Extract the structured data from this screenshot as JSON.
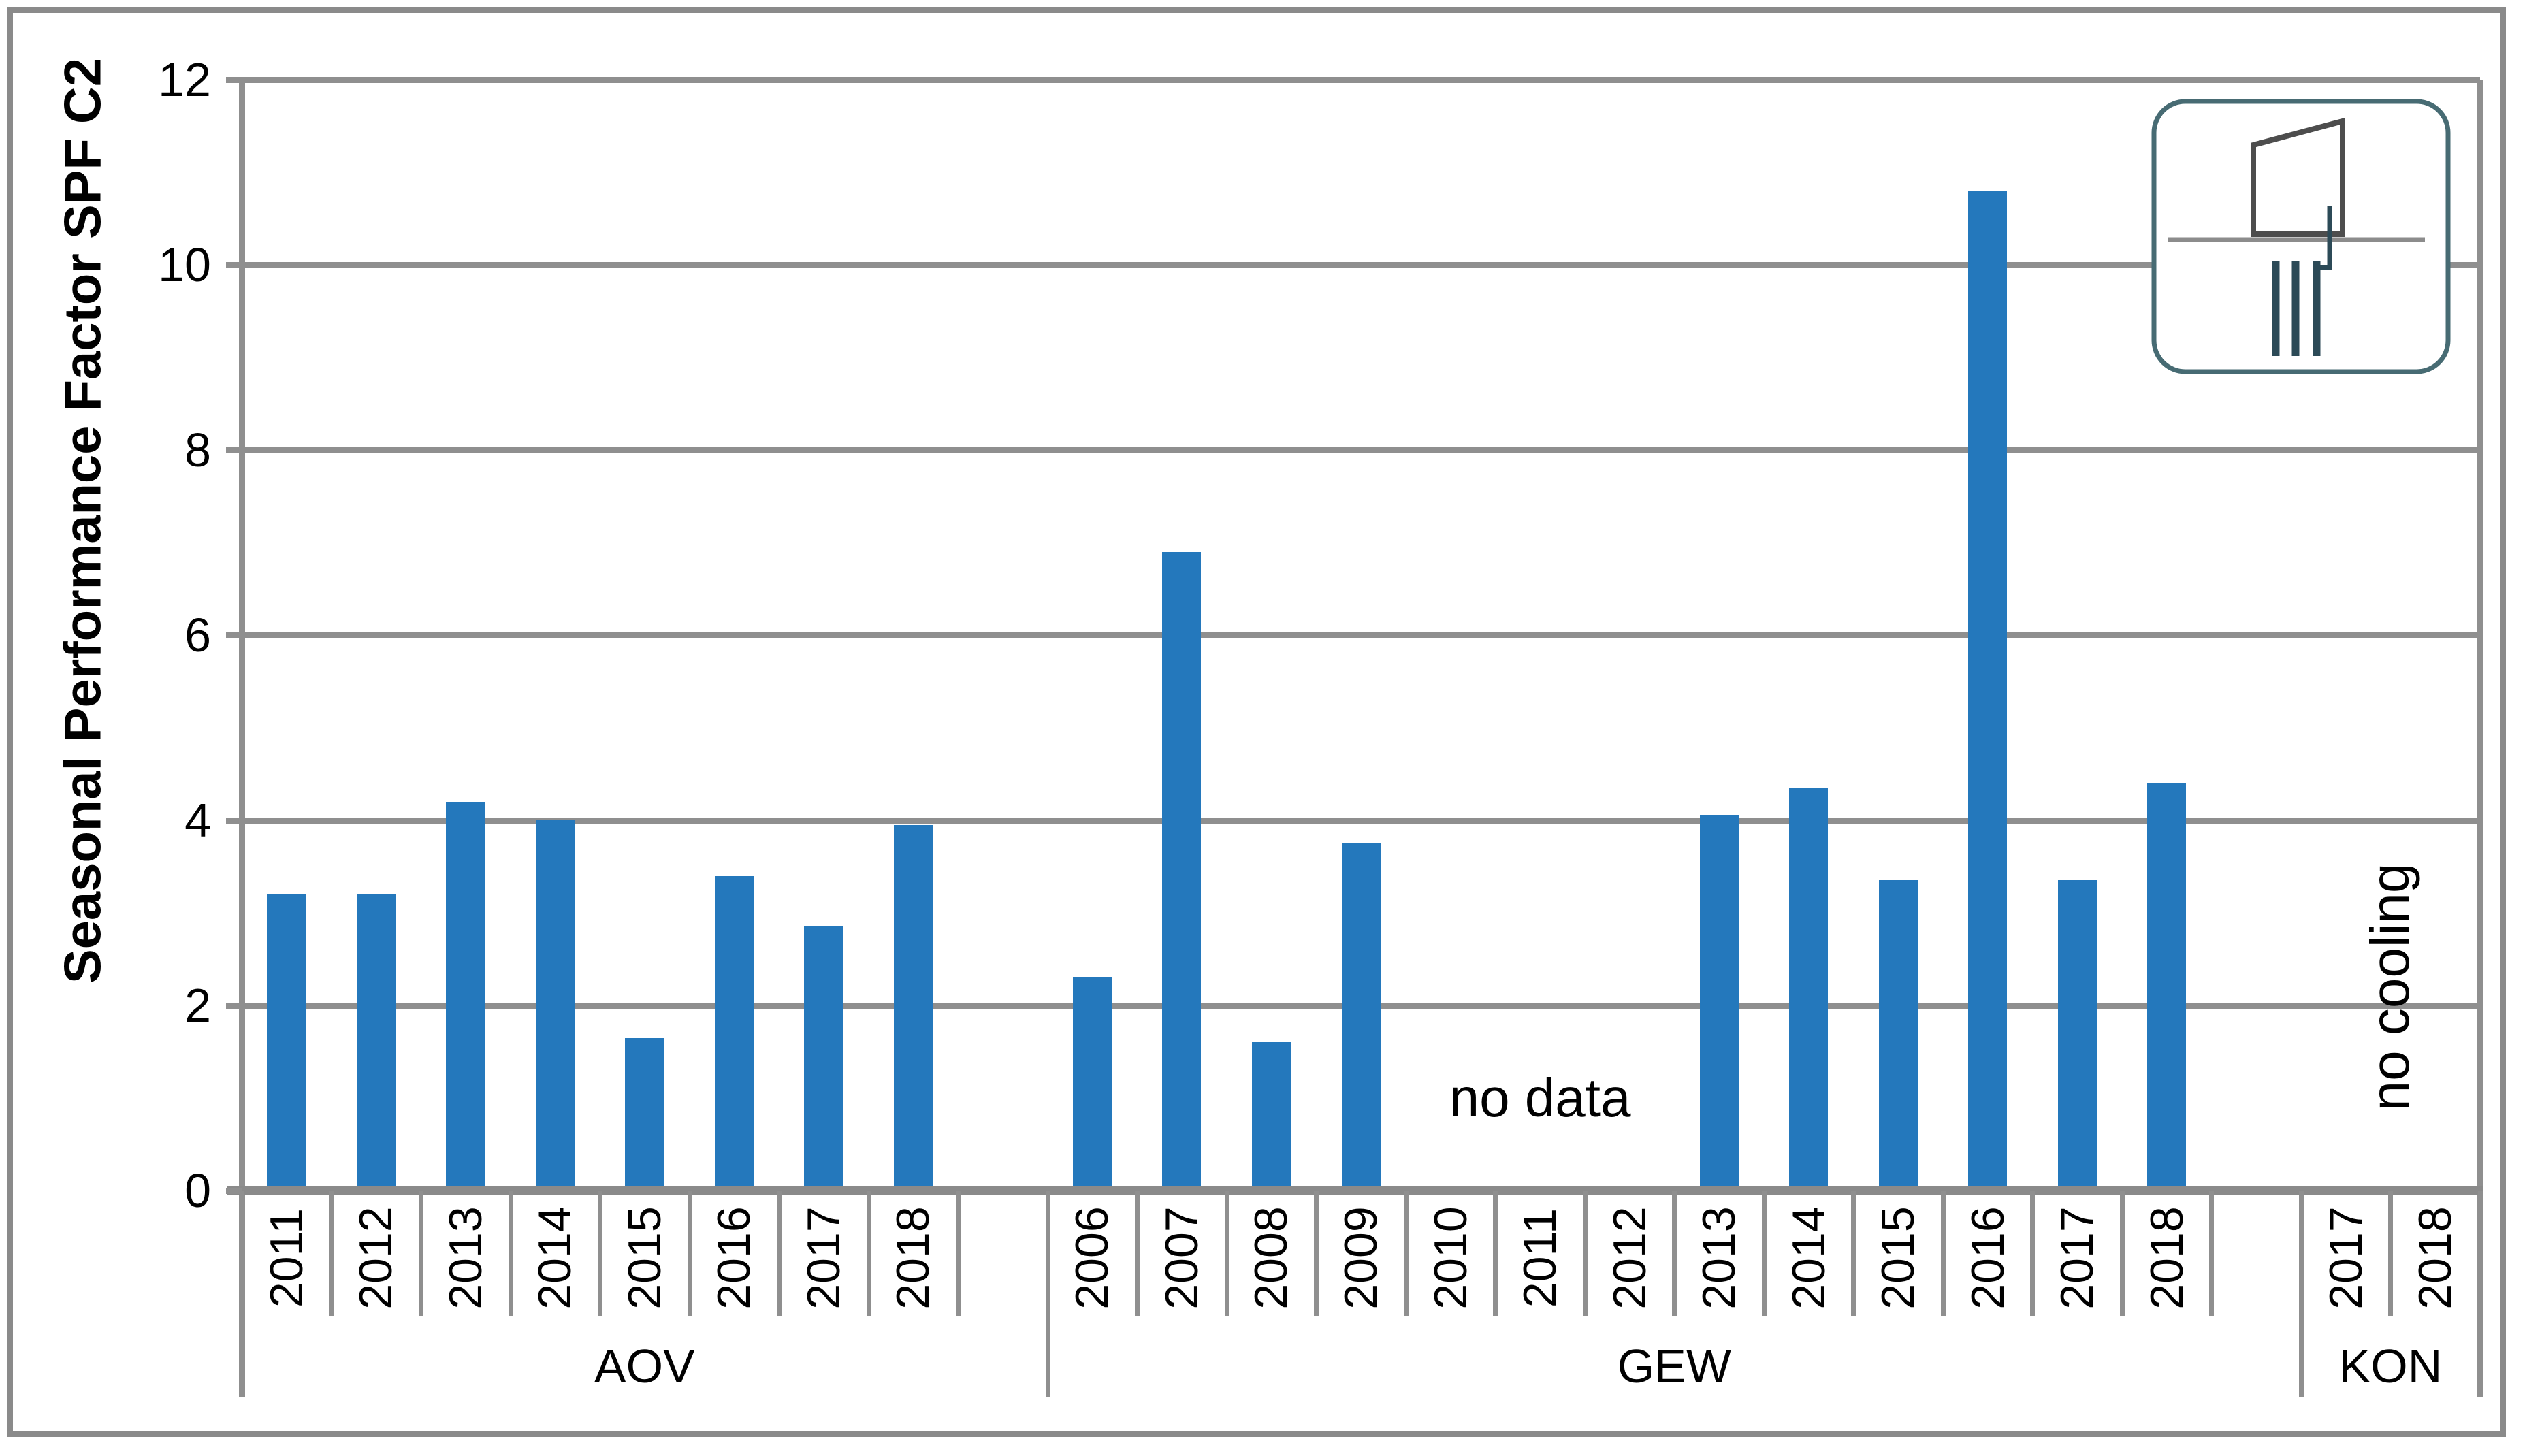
{
  "chart_data": {
    "type": "bar",
    "title": "",
    "xlabel": "",
    "ylabel": "Seasonal Performance Factor SPF C2",
    "ylim": [
      0,
      12
    ],
    "yticks": [
      0,
      2,
      4,
      6,
      8,
      10,
      12
    ],
    "grid": true,
    "legend": null,
    "bar_color": "#2478BC",
    "groups": [
      {
        "name": "AOV",
        "categories": [
          "2011",
          "2012",
          "2013",
          "2014",
          "2015",
          "2016",
          "2017",
          "2018"
        ],
        "values": [
          3.2,
          3.2,
          4.2,
          4.0,
          1.65,
          3.4,
          2.85,
          3.95
        ],
        "spacer_after": true
      },
      {
        "name": "GEW",
        "categories": [
          "2006",
          "2007",
          "2008",
          "2009",
          "2010",
          "2011",
          "2012",
          "2013",
          "2014",
          "2015",
          "2016",
          "2017",
          "2018"
        ],
        "values": [
          2.3,
          6.9,
          1.6,
          3.75,
          null,
          null,
          null,
          4.05,
          4.35,
          3.35,
          10.8,
          3.35,
          4.4
        ],
        "spacer_after": true
      },
      {
        "name": "KON",
        "categories": [
          "2017",
          "2018"
        ],
        "values": [
          null,
          null
        ],
        "spacer_after": false
      }
    ],
    "annotations": [
      {
        "text": "no data",
        "rotated": false,
        "group_index": 1,
        "cat_start": 4,
        "cat_end": 6,
        "y_value": 1.0
      },
      {
        "text": "no cooling",
        "rotated": true,
        "group_index": 2,
        "cat_start": 0,
        "cat_end": 1,
        "y_value": 2.2
      }
    ]
  },
  "icon": {
    "name": "building-with-borehole-heat-exchanger",
    "colors": {
      "border": "#476B73",
      "building": "#4D4D4D",
      "ground": "#8C8C8C",
      "borehole": "#2C4A57"
    }
  },
  "colors": {
    "bar": "#2478BC",
    "grid": "#8F8F8F",
    "frame": "#8A8A8A",
    "text": "#000000",
    "background": "#FFFFFF"
  }
}
